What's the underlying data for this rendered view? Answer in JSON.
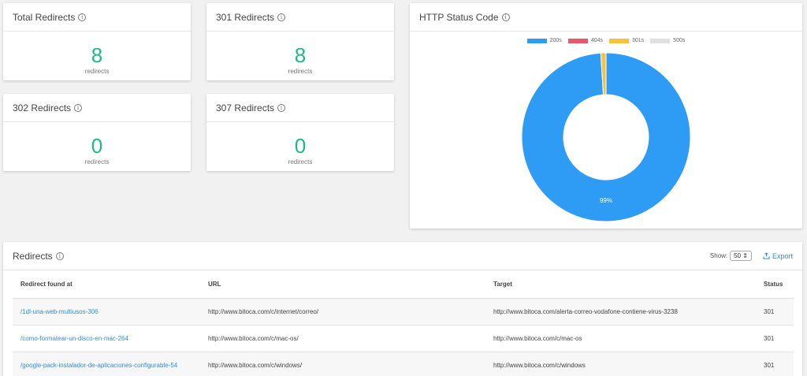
{
  "cards": {
    "total": {
      "title": "Total Redirects",
      "value": "8",
      "unit": "redirects"
    },
    "r301": {
      "title": "301 Redirects",
      "value": "8",
      "unit": "redirects"
    },
    "r302": {
      "title": "302 Redirects",
      "value": "0",
      "unit": "redirects"
    },
    "r307": {
      "title": "307 Redirects",
      "value": "0",
      "unit": "redirects"
    }
  },
  "http_status": {
    "title": "HTTP Status Code",
    "legend": [
      {
        "label": "200s",
        "color": "#2e9cf5"
      },
      {
        "label": "404s",
        "color": "#e8586b"
      },
      {
        "label": "301s",
        "color": "#f5c242"
      },
      {
        "label": "500s",
        "color": "#e0e0e0"
      }
    ],
    "center_label": "99%"
  },
  "chart_data": {
    "type": "pie",
    "categories": [
      "200s",
      "404s",
      "301s",
      "500s"
    ],
    "values": [
      99,
      0,
      1,
      0
    ],
    "data_label": "99%"
  },
  "redirects": {
    "title": "Redirects",
    "show_label": "Show:",
    "show_value": "50",
    "export_label": "Export",
    "columns": [
      "Redirect found at",
      "URL",
      "Target",
      "Status"
    ],
    "rows": [
      [
        "/1dl-una-web-multiusos-306",
        "http://www.bitoca.com/c/internet/correo/",
        "http://www.bitoca.com/alerta-correo-vodafone-contiene-virus-3238",
        "301"
      ],
      [
        "/como-formatear-un-disco-en-mac-264",
        "http://www.bitoca.com/c/mac-os/",
        "http://www.bitoca.com/c/mac-os",
        "301"
      ],
      [
        "/google-pack-instalador-de-aplicaciones-configurable-54",
        "http://www.bitoca.com/c/windows/",
        "http://www.bitoca.com/c/windows",
        "301"
      ]
    ]
  }
}
